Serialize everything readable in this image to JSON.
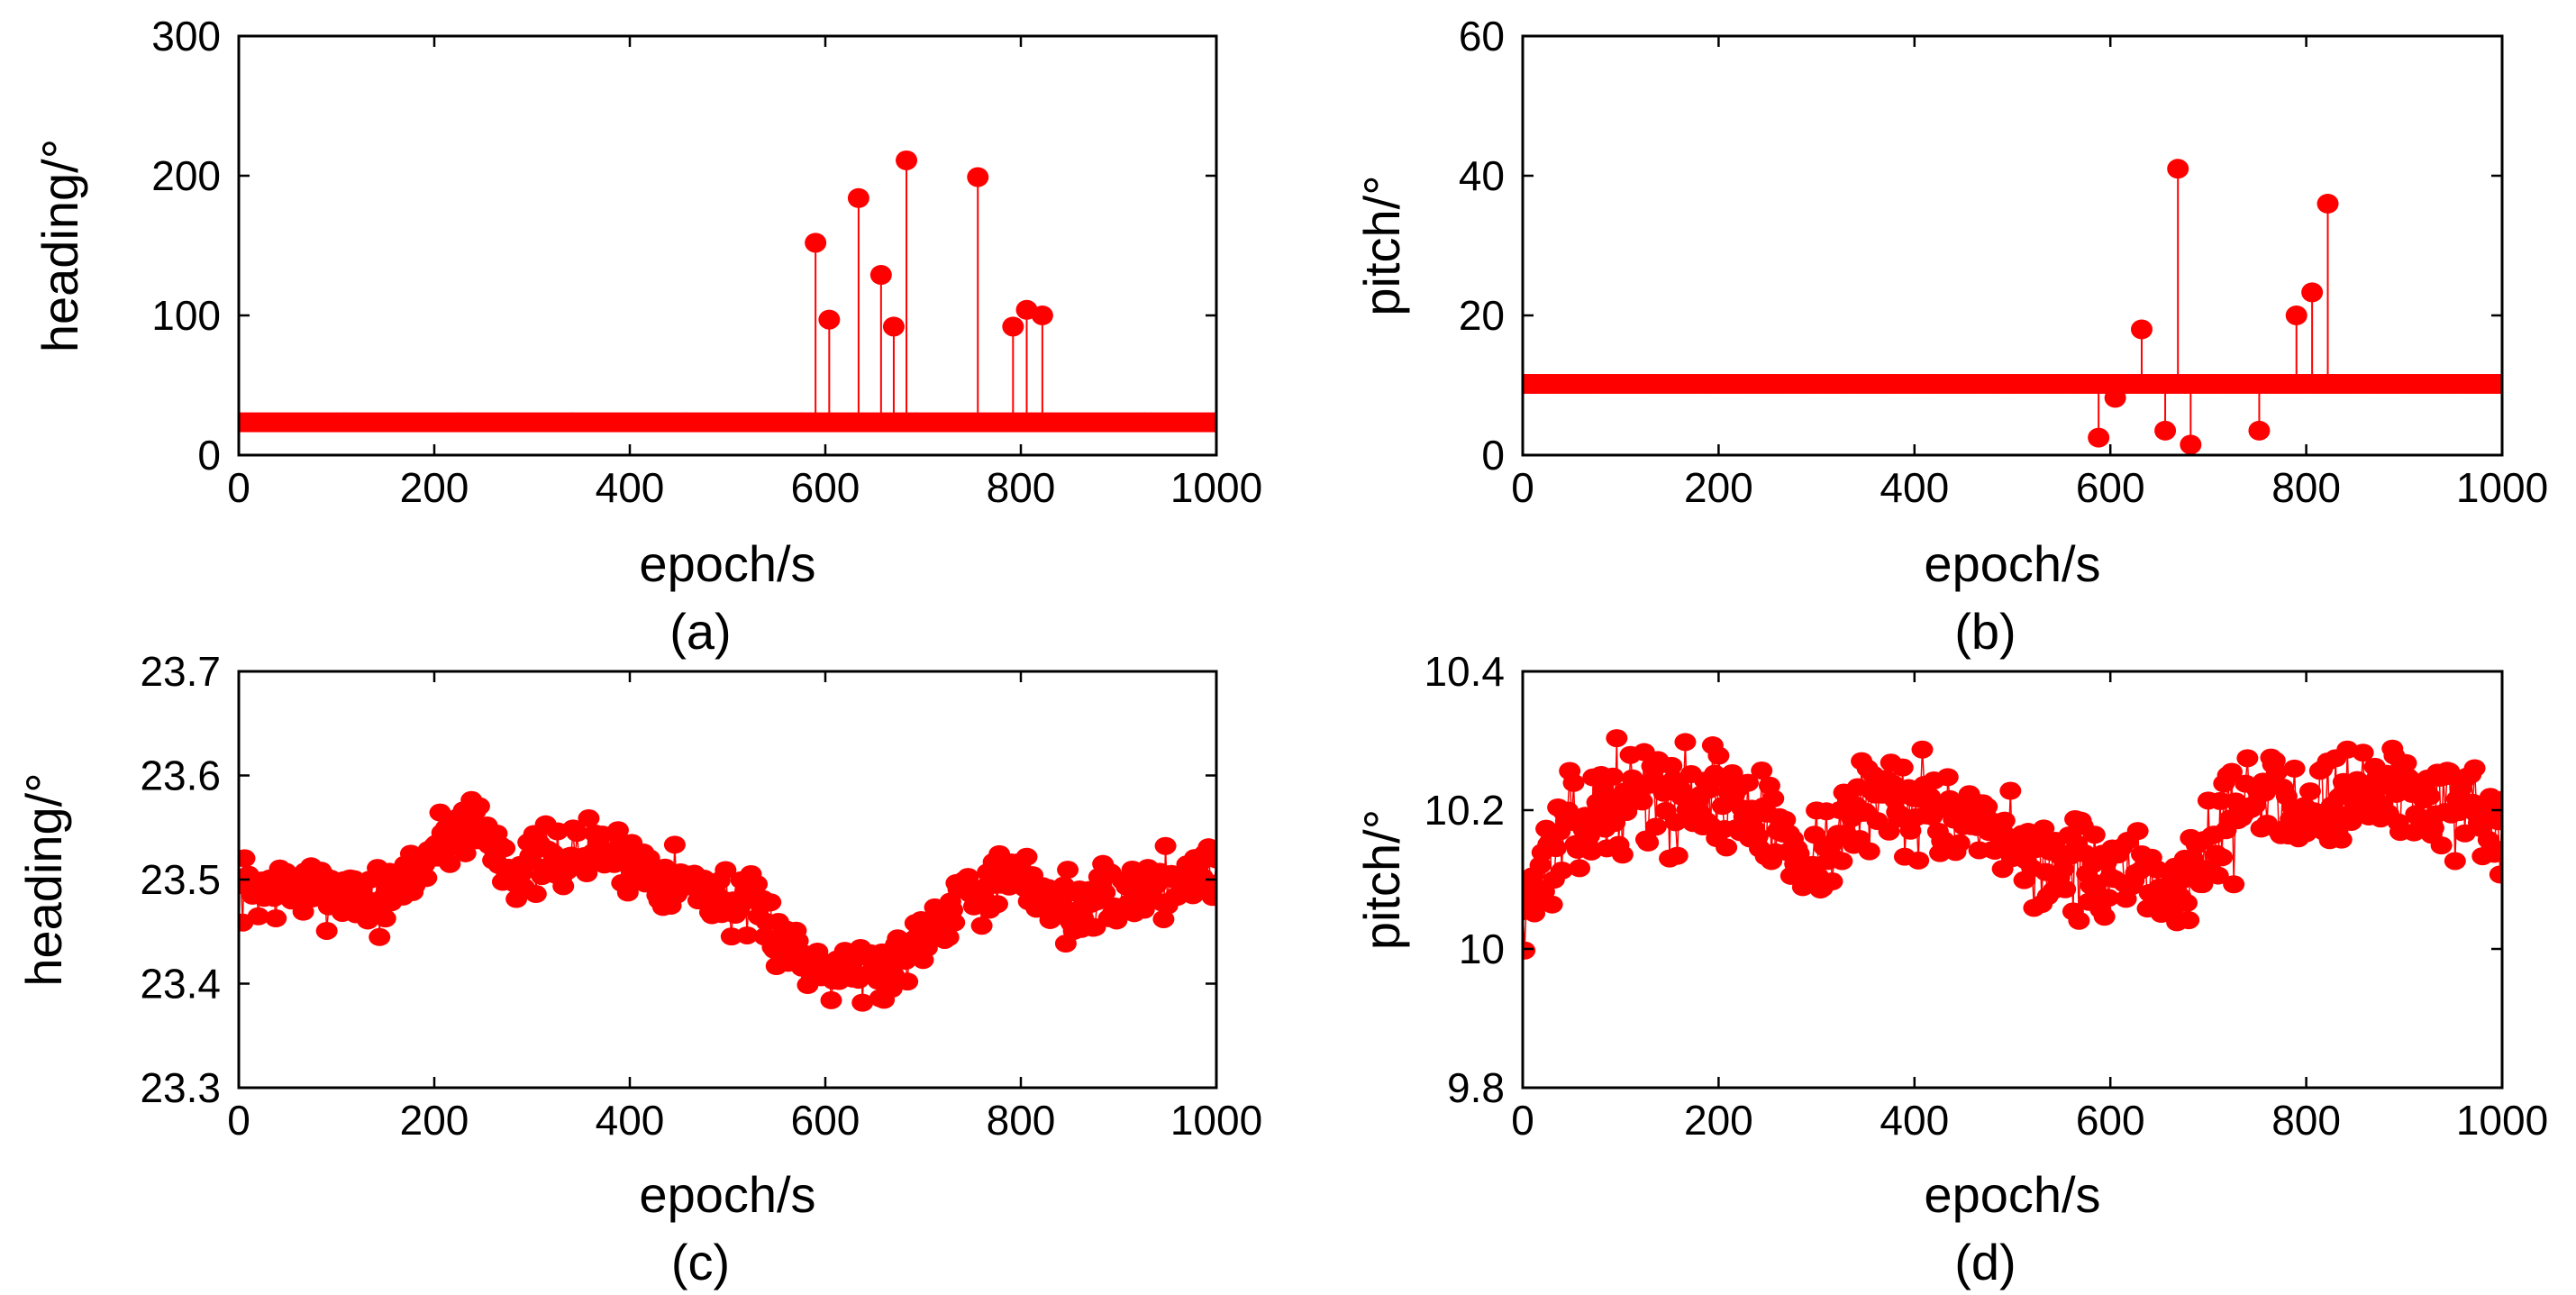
{
  "chart_data": [
    {
      "id": "a",
      "type": "scatter",
      "style": "stem",
      "panel_label": "(a)",
      "xlabel": "epoch/s",
      "ylabel": "heading/°",
      "xlim": [
        0,
        1000
      ],
      "ylim": [
        0,
        300
      ],
      "xticks": [
        0,
        200,
        400,
        600,
        800,
        1000
      ],
      "yticks": [
        0,
        100,
        200,
        300
      ],
      "xtick_labels": [
        "0",
        "200",
        "400",
        "600",
        "800",
        "1000"
      ],
      "ytick_labels": [
        "0",
        "100",
        "200",
        "300"
      ],
      "marker_color": "#ff0000",
      "baseline": {
        "x_start": 0,
        "x_end": 1000,
        "y": 23.5
      },
      "outliers": [
        {
          "x": 590,
          "y": 152
        },
        {
          "x": 604,
          "y": 97
        },
        {
          "x": 634,
          "y": 184
        },
        {
          "x": 657,
          "y": 129
        },
        {
          "x": 670,
          "y": 92
        },
        {
          "x": 683,
          "y": 211
        },
        {
          "x": 756,
          "y": 199
        },
        {
          "x": 792,
          "y": 92
        },
        {
          "x": 806,
          "y": 104
        },
        {
          "x": 822,
          "y": 100
        }
      ]
    },
    {
      "id": "b",
      "type": "scatter",
      "style": "stem",
      "panel_label": "(b)",
      "xlabel": "epoch/s",
      "ylabel": "pitch/°",
      "xlim": [
        0,
        1000
      ],
      "ylim": [
        0,
        60
      ],
      "xticks": [
        0,
        200,
        400,
        600,
        800,
        1000
      ],
      "yticks": [
        0,
        20,
        40,
        60
      ],
      "xtick_labels": [
        "0",
        "200",
        "400",
        "600",
        "800",
        "1000"
      ],
      "ytick_labels": [
        "0",
        "20",
        "40",
        "60"
      ],
      "marker_color": "#ff0000",
      "baseline": {
        "x_start": 0,
        "x_end": 1000,
        "y": 10.2
      },
      "outliers": [
        {
          "x": 588,
          "y": 2.5
        },
        {
          "x": 605,
          "y": 8.2
        },
        {
          "x": 632,
          "y": 18
        },
        {
          "x": 656,
          "y": 3.5
        },
        {
          "x": 669,
          "y": 41
        },
        {
          "x": 682,
          "y": 1.5
        },
        {
          "x": 752,
          "y": 3.5
        },
        {
          "x": 790,
          "y": 20
        },
        {
          "x": 806,
          "y": 23.3
        },
        {
          "x": 822,
          "y": 36
        }
      ]
    },
    {
      "id": "c",
      "type": "scatter",
      "style": "stem",
      "panel_label": "(c)",
      "xlabel": "epoch/s",
      "ylabel": "heading/°",
      "xlim": [
        0,
        1000
      ],
      "ylim": [
        23.3,
        23.7
      ],
      "xticks": [
        0,
        200,
        400,
        600,
        800,
        1000
      ],
      "yticks": [
        23.3,
        23.4,
        23.5,
        23.6,
        23.7
      ],
      "xtick_labels": [
        "0",
        "200",
        "400",
        "600",
        "800",
        "1000"
      ],
      "ytick_labels": [
        "23.3",
        "23.4",
        "23.5",
        "23.6",
        "23.7"
      ],
      "marker_color": "#ff0000",
      "noise": {
        "x_start": 0,
        "x_end": 1000,
        "step": 2,
        "amplitude": 0.022,
        "seed": 7,
        "trend": [
          [
            0,
            23.49
          ],
          [
            100,
            23.49
          ],
          [
            150,
            23.48
          ],
          [
            200,
            23.53
          ],
          [
            240,
            23.56
          ],
          [
            280,
            23.51
          ],
          [
            330,
            23.52
          ],
          [
            370,
            23.53
          ],
          [
            420,
            23.51
          ],
          [
            480,
            23.49
          ],
          [
            540,
            23.46
          ],
          [
            580,
            23.42
          ],
          [
            620,
            23.42
          ],
          [
            660,
            23.41
          ],
          [
            700,
            23.45
          ],
          [
            740,
            23.49
          ],
          [
            800,
            23.5
          ],
          [
            860,
            23.47
          ],
          [
            920,
            23.49
          ],
          [
            1000,
            23.51
          ]
        ]
      }
    },
    {
      "id": "d",
      "type": "scatter",
      "style": "stem",
      "panel_label": "(d)",
      "xlabel": "epoch/s",
      "ylabel": "pitch/°",
      "xlim": [
        0,
        1000
      ],
      "ylim": [
        9.8,
        10.4
      ],
      "xticks": [
        0,
        200,
        400,
        600,
        800,
        1000
      ],
      "yticks": [
        9.8,
        10,
        10.2,
        10.4
      ],
      "xtick_labels": [
        "0",
        "200",
        "400",
        "600",
        "800",
        "1000"
      ],
      "ytick_labels": [
        "9.8",
        "10",
        "10.2",
        "10.4"
      ],
      "marker_color": "#ff0000",
      "noise": {
        "x_start": 0,
        "x_end": 1000,
        "step": 2,
        "amplitude": 0.05,
        "seed": 13,
        "trend": [
          [
            0,
            10.06
          ],
          [
            40,
            10.16
          ],
          [
            100,
            10.22
          ],
          [
            200,
            10.22
          ],
          [
            260,
            10.17
          ],
          [
            300,
            10.13
          ],
          [
            360,
            10.22
          ],
          [
            400,
            10.22
          ],
          [
            440,
            10.18
          ],
          [
            500,
            10.14
          ],
          [
            560,
            10.12
          ],
          [
            620,
            10.09
          ],
          [
            680,
            10.1
          ],
          [
            720,
            10.19
          ],
          [
            760,
            10.22
          ],
          [
            820,
            10.22
          ],
          [
            900,
            10.23
          ],
          [
            960,
            10.2
          ],
          [
            1000,
            10.13
          ]
        ]
      }
    }
  ]
}
